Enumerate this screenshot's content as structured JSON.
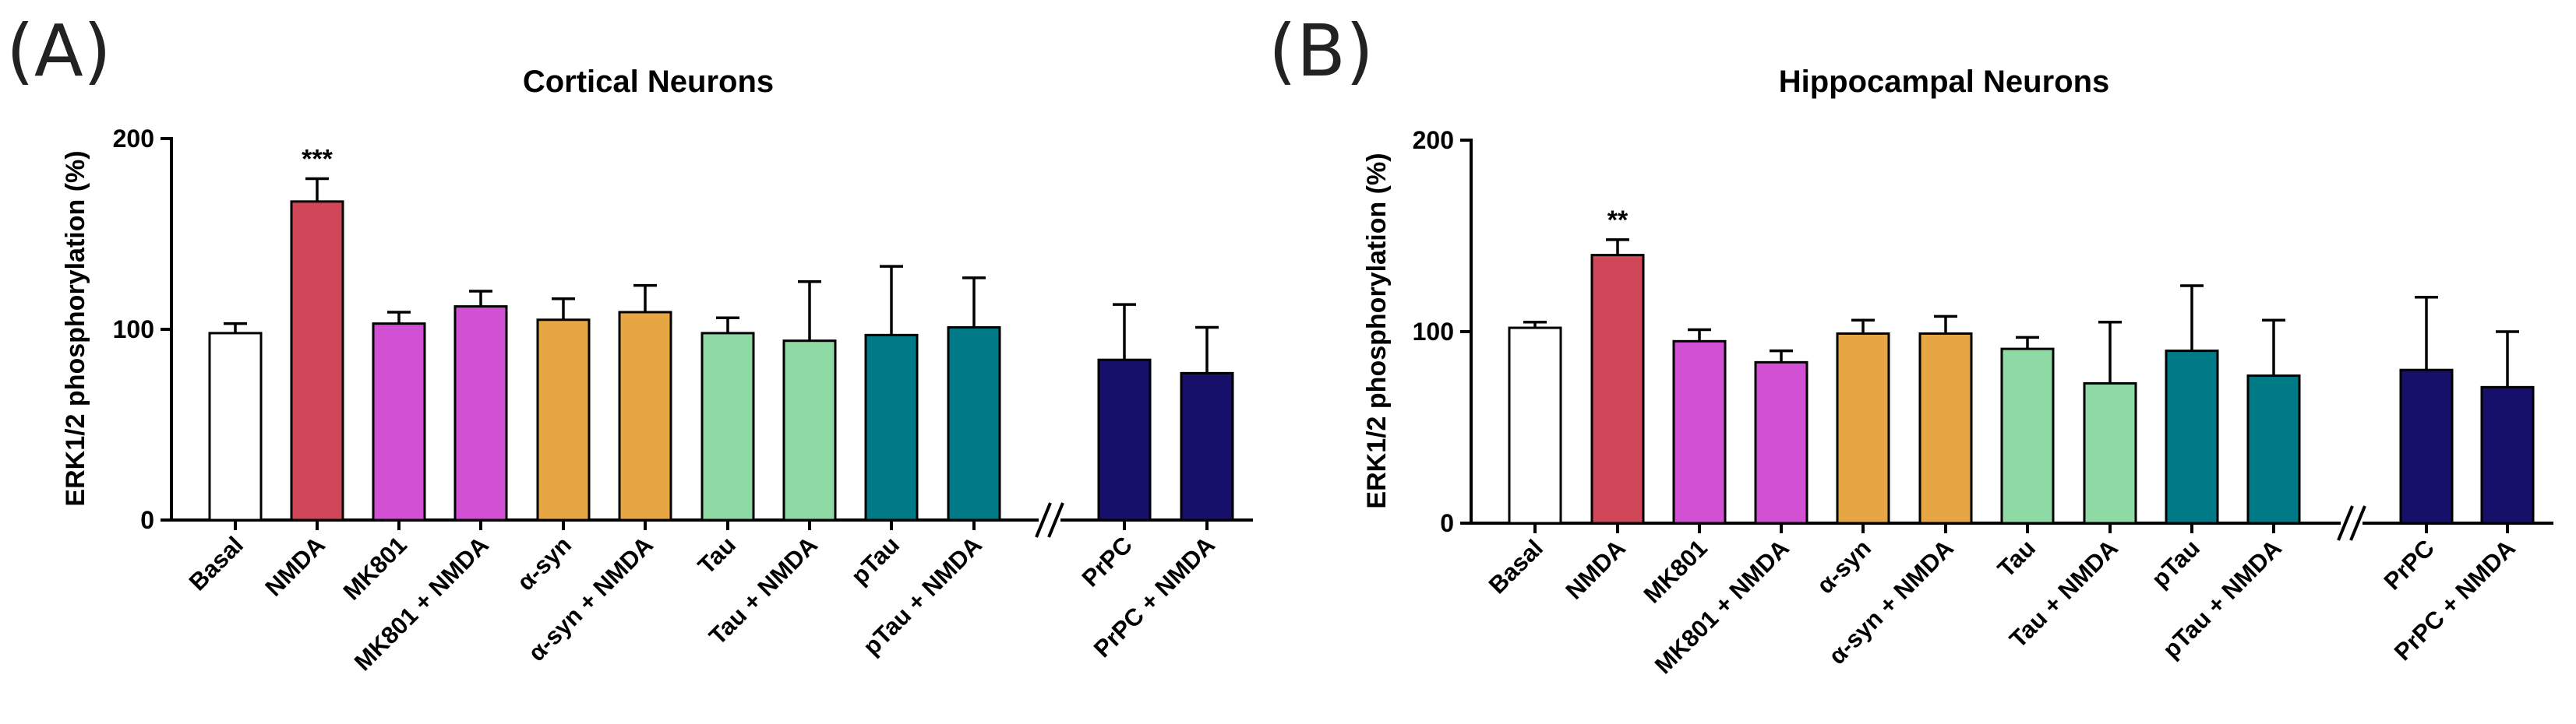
{
  "chart_data": [
    {
      "type": "bar",
      "panel": "(A)",
      "title": "Cortical Neurons",
      "ylabel": "ERK1/2 phosphorylation (%)",
      "xlabel": "",
      "ylim": [
        0,
        200
      ],
      "yticks": [
        "0",
        "100",
        "200"
      ],
      "axis_break": "//",
      "categories": [
        "Basal",
        "NMDA",
        "MK801",
        "MK801 + NMDA",
        "α-syn",
        "α-syn + NMDA",
        "Tau",
        "Tau + NMDA",
        "pTau",
        "pTau + NMDA",
        "PrPC",
        "PrPC + NMDA"
      ],
      "values": [
        98,
        167,
        103,
        112,
        105,
        109,
        98,
        94,
        97,
        101,
        84,
        77
      ],
      "errors": [
        5,
        12,
        6,
        8,
        11,
        14,
        8,
        31,
        36,
        26,
        29,
        24
      ],
      "colors": [
        "#ffffff",
        "#d1475a",
        "#d250d4",
        "#d250d4",
        "#e5a643",
        "#e5a643",
        "#8fd9a4",
        "#8fd9a4",
        "#007a86",
        "#007a86",
        "#17106a",
        "#17106a"
      ],
      "annotations": [
        {
          "category": "NMDA",
          "text": "***"
        }
      ]
    },
    {
      "type": "bar",
      "panel": "(B)",
      "title": "Hippocampal Neurons",
      "ylabel": "ERK1/2 phosphorylation (%)",
      "xlabel": "",
      "ylim": [
        0,
        200
      ],
      "yticks": [
        "0",
        "100",
        "200"
      ],
      "axis_break": "//",
      "categories": [
        "Basal",
        "NMDA",
        "MK801",
        "MK801 + NMDA",
        "α-syn",
        "α-syn + NMDA",
        "Tau",
        "Tau + NMDA",
        "pTau",
        "pTau + NMDA",
        "PrPC",
        "PrPC + NMDA"
      ],
      "values": [
        102,
        140,
        95,
        84,
        99,
        99,
        91,
        73,
        90,
        77,
        80,
        71
      ],
      "errors": [
        3,
        8,
        6,
        6,
        7,
        9,
        6,
        32,
        34,
        29,
        38,
        29
      ],
      "colors": [
        "#ffffff",
        "#d1475a",
        "#d250d4",
        "#d250d4",
        "#e5a643",
        "#e5a643",
        "#8fd9a4",
        "#8fd9a4",
        "#007a86",
        "#007a86",
        "#17106a",
        "#17106a"
      ],
      "annotations": [
        {
          "category": "NMDA",
          "text": "**"
        }
      ]
    }
  ]
}
